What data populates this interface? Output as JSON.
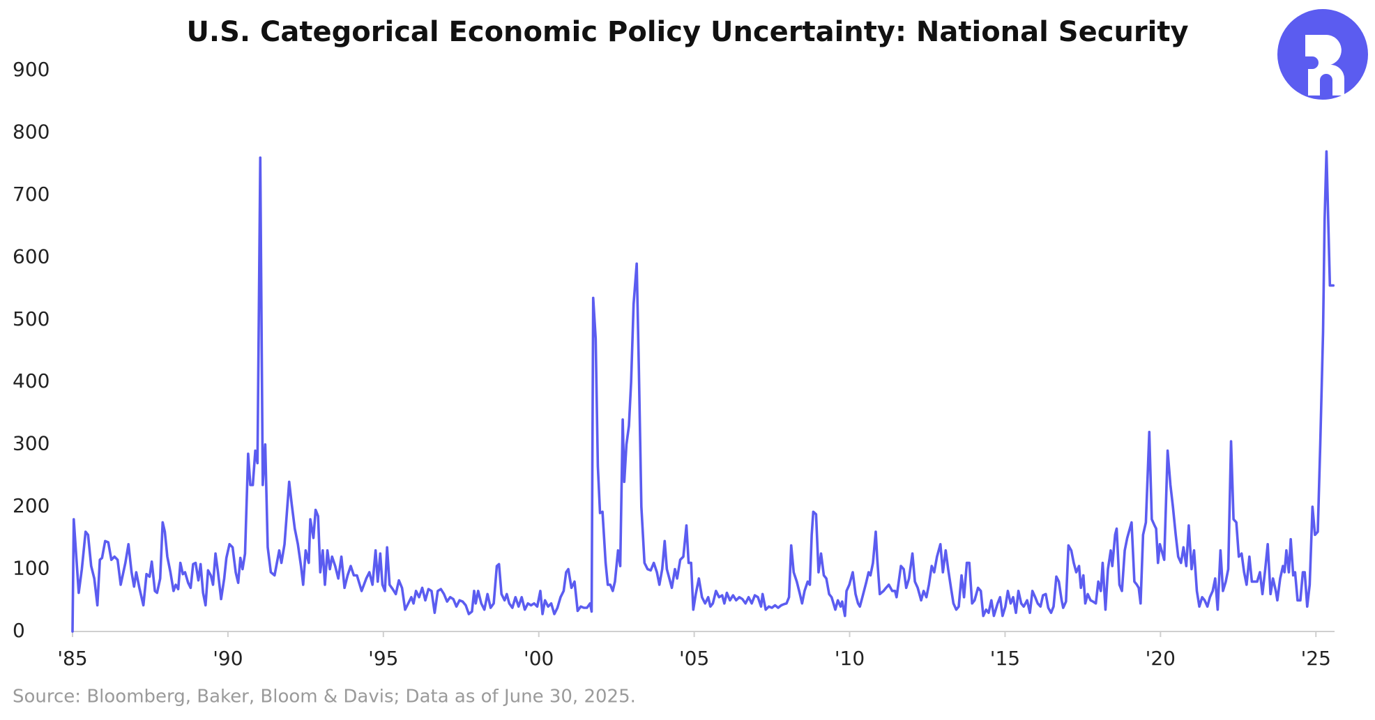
{
  "chart_data": {
    "type": "line",
    "title": "U.S. Categorical Economic Policy Uncertainty: National Security",
    "source": "Source: Bloomberg, Baker, Bloom & Davis; Data as of June 30, 2025.",
    "color": "#5b5cf0",
    "grid": false,
    "xlim": [
      1985,
      2025.6
    ],
    "xticks": [
      {
        "value": 1985,
        "label": "'85"
      },
      {
        "value": 1990,
        "label": "'90"
      },
      {
        "value": 1995,
        "label": "'95"
      },
      {
        "value": 2000,
        "label": "'00"
      },
      {
        "value": 2005,
        "label": "'05"
      },
      {
        "value": 2010,
        "label": "'10"
      },
      {
        "value": 2015,
        "label": "'15"
      },
      {
        "value": 2020,
        "label": "'20"
      },
      {
        "value": 2025,
        "label": "'25"
      }
    ],
    "ylim": [
      0,
      900
    ],
    "yticks": [
      0,
      100,
      200,
      300,
      400,
      500,
      600,
      700,
      800,
      900
    ],
    "x": [
      1985,
      1985.04,
      1985.2,
      1985.3,
      1985.42,
      1985.5,
      1985.6,
      1985.7,
      1985.8,
      1985.88,
      1985.95,
      1986.05,
      1986.15,
      1986.25,
      1986.35,
      1986.45,
      1986.55,
      1986.7,
      1986.8,
      1986.9,
      1986.98,
      1987.05,
      1987.15,
      1987.28,
      1987.38,
      1987.48,
      1987.55,
      1987.65,
      1987.72,
      1987.82,
      1987.9,
      1987.97,
      1988.05,
      1988.15,
      1988.25,
      1988.32,
      1988.4,
      1988.47,
      1988.55,
      1988.62,
      1988.72,
      1988.8,
      1988.88,
      1988.96,
      1989.05,
      1989.12,
      1989.2,
      1989.28,
      1989.36,
      1989.45,
      1989.52,
      1989.6,
      1989.68,
      1989.78,
      1989.88,
      1989.95,
      1990.05,
      1990.15,
      1990.25,
      1990.33,
      1990.4,
      1990.47,
      1990.55,
      1990.65,
      1990.72,
      1990.8,
      1990.88,
      1990.95,
      1991.04,
      1991.12,
      1991.2,
      1991.28,
      1991.38,
      1991.5,
      1991.65,
      1991.72,
      1991.82,
      1991.97,
      1992.05,
      1992.15,
      1992.25,
      1992.35,
      1992.42,
      1992.5,
      1992.6,
      1992.65,
      1992.75,
      1992.82,
      1992.9,
      1992.97,
      1993.05,
      1993.12,
      1993.2,
      1993.28,
      1993.35,
      1993.45,
      1993.55,
      1993.65,
      1993.75,
      1993.85,
      1993.95,
      1994.05,
      1994.15,
      1994.3,
      1994.45,
      1994.55,
      1994.65,
      1994.75,
      1994.82,
      1994.9,
      1994.97,
      1995.05,
      1995.12,
      1995.2,
      1995.3,
      1995.4,
      1995.5,
      1995.6,
      1995.7,
      1995.8,
      1995.9,
      1995.97,
      1996.05,
      1996.15,
      1996.25,
      1996.35,
      1996.45,
      1996.55,
      1996.65,
      1996.75,
      1996.85,
      1996.95,
      1997.05,
      1997.15,
      1997.25,
      1997.35,
      1997.45,
      1997.55,
      1997.65,
      1997.75,
      1997.85,
      1997.92,
      1997.97,
      1998.05,
      1998.15,
      1998.25,
      1998.35,
      1998.45,
      1998.55,
      1998.65,
      1998.72,
      1998.8,
      1998.9,
      1998.97,
      1999.05,
      1999.15,
      1999.25,
      1999.35,
      1999.45,
      1999.55,
      1999.65,
      1999.75,
      1999.85,
      1999.95,
      2000.05,
      2000.12,
      2000.2,
      2000.3,
      2000.4,
      2000.5,
      2000.6,
      2000.7,
      2000.8,
      2000.88,
      2000.95,
      2001.05,
      2001.15,
      2001.25,
      2001.35,
      2001.45,
      2001.55,
      2001.65,
      2001.7,
      2001.75,
      2001.83,
      2001.9,
      2001.97,
      2002.05,
      2002.15,
      2002.22,
      2002.3,
      2002.38,
      2002.45,
      2002.55,
      2002.62,
      2002.7,
      2002.75,
      2002.82,
      2002.9,
      2002.97,
      2003.05,
      2003.15,
      2003.22,
      2003.3,
      2003.4,
      2003.5,
      2003.6,
      2003.7,
      2003.8,
      2003.88,
      2003.97,
      2004.05,
      2004.12,
      2004.2,
      2004.28,
      2004.38,
      2004.45,
      2004.55,
      2004.65,
      2004.75,
      2004.82,
      2004.9,
      2004.97,
      2005.05,
      2005.15,
      2005.25,
      2005.35,
      2005.45,
      2005.52,
      2005.6,
      2005.7,
      2005.8,
      2005.9,
      2005.97,
      2006.05,
      2006.15,
      2006.25,
      2006.35,
      2006.45,
      2006.55,
      2006.65,
      2006.75,
      2006.85,
      2006.95,
      2007.05,
      2007.15,
      2007.2,
      2007.3,
      2007.4,
      2007.5,
      2007.6,
      2007.7,
      2007.8,
      2007.9,
      2007.97,
      2008.05,
      2008.12,
      2008.2,
      2008.3,
      2008.4,
      2008.47,
      2008.55,
      2008.65,
      2008.72,
      2008.78,
      2008.83,
      2008.92,
      2009,
      2009.08,
      2009.17,
      2009.25,
      2009.34,
      2009.42,
      2009.54,
      2009.62,
      2009.71,
      2009.76,
      2009.85,
      2009.9,
      2009.99,
      2010.1,
      2010.19,
      2010.27,
      2010.33,
      2010.41,
      2010.53,
      2010.61,
      2010.67,
      2010.75,
      2010.84,
      2010.89,
      2010.97,
      2011.09,
      2011.17,
      2011.26,
      2011.37,
      2011.46,
      2011.51,
      2011.65,
      2011.74,
      2011.82,
      2011.91,
      2012.02,
      2012.1,
      2012.19,
      2012.3,
      2012.38,
      2012.47,
      2012.55,
      2012.64,
      2012.72,
      2012.81,
      2012.92,
      2013,
      2013.09,
      2013.17,
      2013.26,
      2013.34,
      2013.43,
      2013.51,
      2013.6,
      2013.68,
      2013.77,
      2013.85,
      2013.94,
      2014.02,
      2014.13,
      2014.22,
      2014.3,
      2014.39,
      2014.47,
      2014.56,
      2014.64,
      2014.76,
      2014.84,
      2014.92,
      2015.01,
      2015.09,
      2015.18,
      2015.26,
      2015.35,
      2015.43,
      2015.52,
      2015.6,
      2015.71,
      2015.8,
      2015.88,
      2015.97,
      2016.05,
      2016.14,
      2016.22,
      2016.31,
      2016.39,
      2016.48,
      2016.56,
      2016.65,
      2016.73,
      2016.82,
      2016.87,
      2016.96,
      2017.04,
      2017.13,
      2017.21,
      2017.29,
      2017.38,
      2017.44,
      2017.52,
      2017.58,
      2017.66,
      2017.75,
      2017.83,
      2017.92,
      2018,
      2018.08,
      2018.14,
      2018.23,
      2018.31,
      2018.4,
      2018.45,
      2018.54,
      2018.59,
      2018.68,
      2018.76,
      2018.85,
      2018.93,
      2019.07,
      2019.16,
      2019.24,
      2019.3,
      2019.36,
      2019.44,
      2019.53,
      2019.64,
      2019.72,
      2019.81,
      2019.86,
      2019.92,
      2019.98,
      2020.12,
      2020.23,
      2020.32,
      2020.4,
      2020.49,
      2020.57,
      2020.66,
      2020.74,
      2020.83,
      2020.91,
      2021,
      2021.08,
      2021.17,
      2021.25,
      2021.34,
      2021.42,
      2021.51,
      2021.59,
      2021.68,
      2021.76,
      2021.84,
      2021.93,
      2022.01,
      2022.1,
      2022.18,
      2022.27,
      2022.35,
      2022.44,
      2022.52,
      2022.61,
      2022.69,
      2022.77,
      2022.86,
      2022.94,
      2023.03,
      2023.11,
      2023.2,
      2023.28,
      2023.37,
      2023.45,
      2023.54,
      2023.62,
      2023.71,
      2023.76,
      2023.85,
      2023.94,
      2023.99,
      2024.05,
      2024.13,
      2024.19,
      2024.27,
      2024.33,
      2024.41,
      2024.5,
      2024.58,
      2024.64,
      2024.72,
      2024.8,
      2024.89,
      2024.97,
      2025.06,
      2025.14,
      2025.23,
      2025.28,
      2025.34,
      2025.45,
      2025.56
    ],
    "values": [
      0,
      180,
      62,
      100,
      160,
      155,
      105,
      85,
      42,
      115,
      118,
      145,
      143,
      115,
      120,
      115,
      75,
      110,
      140,
      95,
      72,
      95,
      70,
      42,
      92,
      88,
      112,
      65,
      62,
      85,
      175,
      160,
      120,
      95,
      65,
      75,
      68,
      110,
      92,
      95,
      78,
      70,
      108,
      110,
      82,
      108,
      62,
      42,
      98,
      90,
      75,
      125,
      95,
      52,
      85,
      118,
      140,
      135,
      95,
      78,
      118,
      100,
      125,
      285,
      235,
      235,
      290,
      270,
      760,
      235,
      300,
      135,
      95,
      90,
      130,
      110,
      140,
      240,
      205,
      165,
      140,
      105,
      75,
      130,
      110,
      180,
      150,
      195,
      185,
      95,
      130,
      75,
      130,
      100,
      120,
      105,
      85,
      120,
      70,
      90,
      105,
      90,
      90,
      65,
      85,
      95,
      75,
      130,
      80,
      125,
      75,
      65,
      135,
      75,
      68,
      60,
      82,
      70,
      35,
      45,
      55,
      45,
      65,
      55,
      70,
      50,
      68,
      65,
      30,
      65,
      68,
      60,
      48,
      55,
      52,
      40,
      50,
      48,
      42,
      28,
      32,
      65,
      45,
      65,
      45,
      35,
      60,
      38,
      45,
      105,
      108,
      60,
      50,
      60,
      45,
      38,
      55,
      40,
      55,
      35,
      45,
      42,
      45,
      40,
      65,
      28,
      50,
      40,
      45,
      28,
      38,
      55,
      65,
      95,
      100,
      70,
      80,
      33,
      40,
      38,
      38,
      45,
      32,
      535,
      470,
      265,
      190,
      192,
      110,
      75,
      75,
      65,
      80,
      130,
      105,
      340,
      240,
      300,
      330,
      400,
      525,
      590,
      420,
      200,
      110,
      100,
      98,
      110,
      95,
      75,
      100,
      145,
      100,
      85,
      70,
      100,
      85,
      115,
      120,
      170,
      110,
      110,
      35,
      60,
      85,
      55,
      45,
      55,
      40,
      45,
      65,
      55,
      58,
      45,
      62,
      50,
      58,
      50,
      55,
      52,
      45,
      55,
      45,
      58,
      55,
      40,
      60,
      35,
      40,
      38,
      42,
      38,
      42,
      44,
      45,
      55,
      138,
      95,
      80,
      60,
      45,
      65,
      80,
      75,
      155,
      192,
      188,
      95,
      125,
      90,
      85,
      60,
      55,
      35,
      50,
      40,
      48,
      25,
      65,
      75,
      95,
      60,
      45,
      40,
      55,
      78,
      95,
      90,
      110,
      160,
      115,
      60,
      65,
      70,
      75,
      65,
      65,
      55,
      105,
      100,
      70,
      85,
      125,
      80,
      70,
      50,
      65,
      55,
      75,
      105,
      95,
      120,
      140,
      95,
      130,
      100,
      70,
      45,
      35,
      40,
      90,
      55,
      110,
      110,
      45,
      50,
      70,
      65,
      25,
      35,
      30,
      50,
      25,
      45,
      55,
      25,
      40,
      65,
      45,
      55,
      30,
      65,
      45,
      40,
      50,
      30,
      65,
      55,
      45,
      40,
      58,
      60,
      38,
      30,
      40,
      88,
      80,
      50,
      38,
      48,
      138,
      130,
      110,
      95,
      105,
      70,
      90,
      45,
      60,
      50,
      48,
      45,
      80,
      65,
      110,
      35,
      100,
      130,
      105,
      155,
      165,
      75,
      65,
      130,
      150,
      175,
      80,
      75,
      70,
      45,
      155,
      175,
      320,
      180,
      170,
      165,
      110,
      140,
      115,
      290,
      235,
      200,
      155,
      120,
      110,
      135,
      105,
      170,
      100,
      130,
      65,
      40,
      55,
      50,
      40,
      55,
      65,
      85,
      35,
      130,
      65,
      80,
      100,
      305,
      180,
      175,
      120,
      125,
      95,
      75,
      120,
      80,
      80,
      80,
      95,
      60,
      100,
      140,
      60,
      85,
      65,
      50,
      85,
      105,
      95,
      130,
      95,
      148,
      90,
      95,
      50,
      50,
      95,
      95,
      40,
      75,
      200,
      155,
      160,
      300,
      480,
      660,
      770,
      555,
      555
    ]
  }
}
